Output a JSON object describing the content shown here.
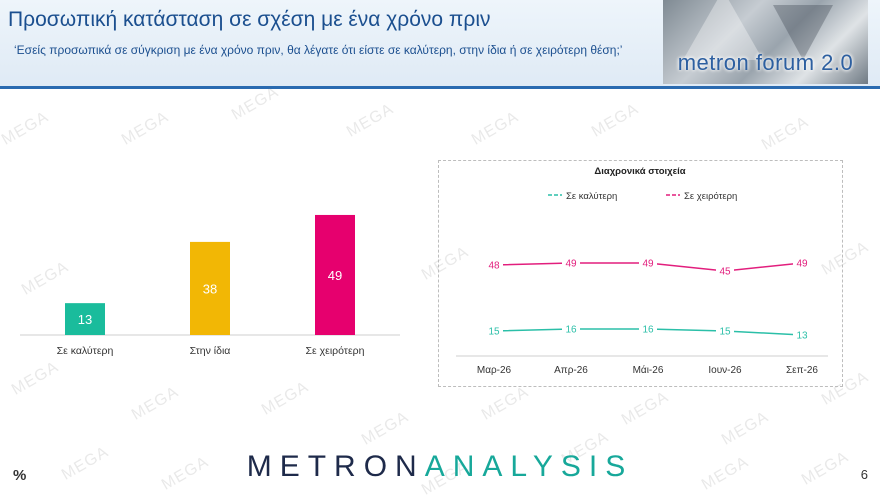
{
  "header": {
    "title": "Προσωπική κατάσταση σε σχέση με ένα χρόνο πριν",
    "subtitle": "‘Εσείς προσωπικά σε σύγκριση με ένα χρόνο πριν, θα λέγατε ότι είστε σε καλύτερη, στην ίδια ή σε χειρότερη θέση;’",
    "logo_text": "metron forum 2.0"
  },
  "watermark": "MEGA",
  "footer": {
    "brand_part1": "METRON",
    "brand_part2": "ANALYSIS",
    "percent_symbol": "%",
    "page_number": "6"
  },
  "colors": {
    "title_blue": "#1b4f8f",
    "teal": "#1abc9c",
    "amber": "#f2b705",
    "pink": "#e6006e",
    "line_teal": "#2bbfa8",
    "line_pink": "#e21e7d"
  },
  "chart_data": [
    {
      "type": "bar",
      "categories": [
        "Σε καλύτερη",
        "Στην ίδια",
        "Σε χειρότερη"
      ],
      "values": [
        13,
        38,
        49
      ],
      "colors": [
        "#1abc9c",
        "#f2b705",
        "#e6006e"
      ],
      "ylim": [
        0,
        55
      ],
      "grid": false,
      "data_labels": true
    },
    {
      "type": "line",
      "title": "Διαχρονικά στοιχεία",
      "x": [
        "Μαρ-26",
        "Απρ-26",
        "Μάι-26",
        "Ιουν-26",
        "Σεπ-26"
      ],
      "series": [
        {
          "name": "Σε καλύτερη",
          "values": [
            15,
            16,
            16,
            15,
            13
          ],
          "color": "#2bbfa8"
        },
        {
          "name": "Σε χειρότερη",
          "values": [
            48,
            49,
            49,
            45,
            49
          ],
          "color": "#e21e7d"
        }
      ],
      "ylim": [
        0,
        60
      ],
      "legend": "top",
      "grid": false,
      "data_labels": true
    }
  ]
}
